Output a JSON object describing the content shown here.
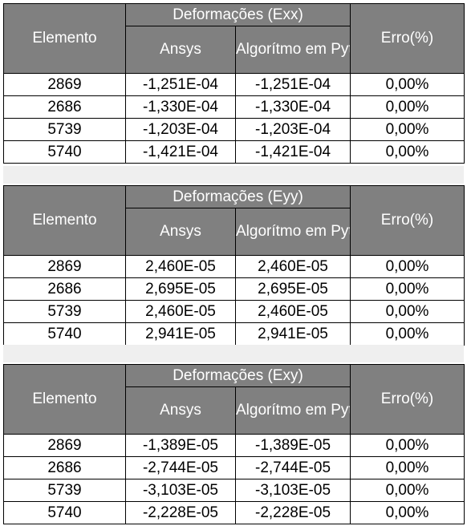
{
  "tables": [
    {
      "group_header": "Deformações (Exx)",
      "col_element": "Elemento",
      "col_ansys": "Ansys",
      "col_python": "Algorítmo em Python",
      "col_error": "Erro(%)",
      "rows": [
        {
          "element": "2869",
          "ansys": "-1,251E-04",
          "python": "-1,251E-04",
          "error": "0,00%"
        },
        {
          "element": "2686",
          "ansys": "-1,330E-04",
          "python": "-1,330E-04",
          "error": "0,00%"
        },
        {
          "element": "5739",
          "ansys": "-1,203E-04",
          "python": "-1,203E-04",
          "error": "0,00%"
        },
        {
          "element": "5740",
          "ansys": "-1,421E-04",
          "python": "-1,421E-04",
          "error": "0,00%"
        }
      ]
    },
    {
      "group_header": "Deformações (Eyy)",
      "col_element": "Elemento",
      "col_ansys": "Ansys",
      "col_python": "Algorítmo em Python",
      "col_error": "Erro(%)",
      "rows": [
        {
          "element": "2869",
          "ansys": "2,460E-05",
          "python": "2,460E-05",
          "error": "0,00%"
        },
        {
          "element": "2686",
          "ansys": "2,695E-05",
          "python": "2,695E-05",
          "error": "0,00%"
        },
        {
          "element": "5739",
          "ansys": "2,460E-05",
          "python": "2,460E-05",
          "error": "0,00%"
        },
        {
          "element": "5740",
          "ansys": "2,941E-05",
          "python": "2,941E-05",
          "error": "0,00%"
        }
      ]
    },
    {
      "group_header": "Deformações (Exy)",
      "col_element": "Elemento",
      "col_ansys": "Ansys",
      "col_python": "Algorítmo em Python",
      "col_error": "Erro(%)",
      "rows": [
        {
          "element": "2869",
          "ansys": "-1,389E-05",
          "python": "-1,389E-05",
          "error": "0,00%"
        },
        {
          "element": "2686",
          "ansys": "-2,744E-05",
          "python": "-2,744E-05",
          "error": "0,00%"
        },
        {
          "element": "5739",
          "ansys": "-3,103E-05",
          "python": "-3,103E-05",
          "error": "0,00%"
        },
        {
          "element": "5740",
          "ansys": "-2,228E-05",
          "python": "-2,228E-05",
          "error": "0,00%"
        }
      ]
    }
  ],
  "colors": {
    "header_bg": "#808080",
    "header_text": "#ffffff",
    "separator_bg": "#efefef",
    "border": "#000000"
  }
}
